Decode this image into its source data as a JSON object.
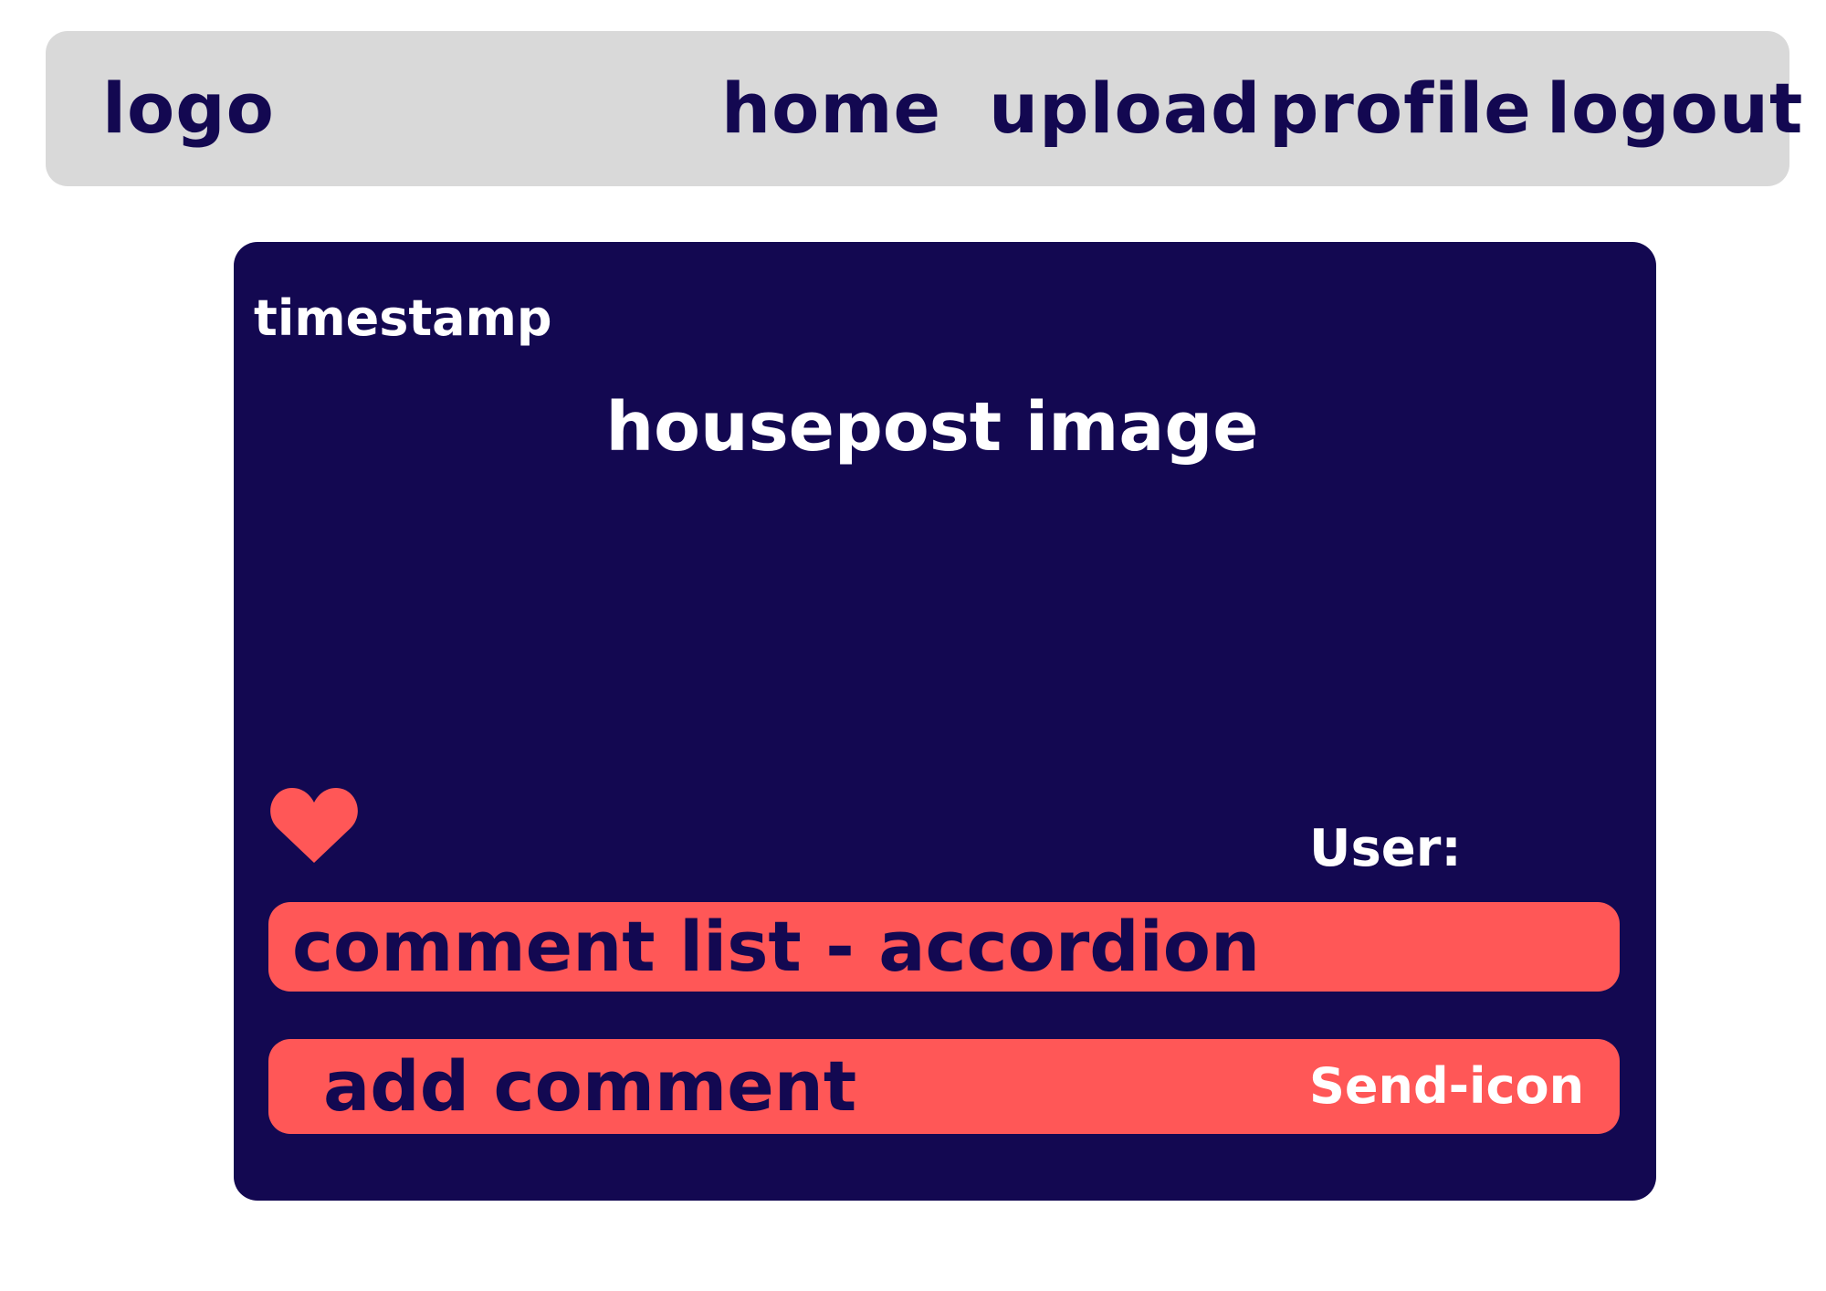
{
  "navbar": {
    "logo": "logo",
    "links": {
      "home": "home",
      "upload": "upload",
      "profile": "profile",
      "logout": "logout"
    }
  },
  "post": {
    "timestamp": "timestamp",
    "image_label": "housepost image",
    "like_icon": "heart-icon",
    "user_label": "User:",
    "comment_list_label": "comment list - accordion",
    "add_comment_label": "add comment",
    "send_label": "Send-icon"
  },
  "colors": {
    "navbar_bg": "#d9d9d9",
    "navy": "#130851",
    "coral": "#ff5757",
    "white": "#ffffff"
  }
}
